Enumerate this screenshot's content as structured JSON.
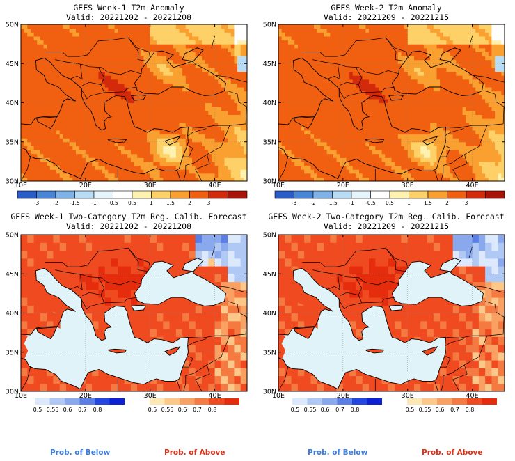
{
  "panels": [
    {
      "title": "GEFS Week-1 T2m Anomaly",
      "valid": "Valid: 20221202 - 20221208",
      "type": "anomaly"
    },
    {
      "title": "GEFS Week-2 T2m Anomaly",
      "valid": "Valid: 20221209 - 20221215",
      "type": "anomaly"
    },
    {
      "title": "GEFS Week-1 Two-Category T2m Reg. Calib. Forecast",
      "valid": "Valid: 20221202 - 20221208",
      "type": "prob"
    },
    {
      "title": "GEFS Week-2 Two-Category T2m Reg. Calib. Forecast",
      "valid": "Valid: 20221209 - 20221215",
      "type": "prob"
    }
  ],
  "map": {
    "lat_labels": [
      "50N",
      "45N",
      "40N",
      "35N",
      "30N"
    ],
    "lon_labels": [
      "10E",
      "20E",
      "30E",
      "40E"
    ]
  },
  "anomaly_colorbar": {
    "labels": [
      "-3",
      "-2",
      "-1.5",
      "-1",
      "-0.5",
      "0.5",
      "1",
      "1.5",
      "2",
      "3"
    ],
    "colors": [
      "#2a5cc8",
      "#4a86d8",
      "#7fb3e8",
      "#b8dcf4",
      "#e6f5fc",
      "#ffffff",
      "#fff2b0",
      "#fdd068",
      "#f9a030",
      "#f06010",
      "#d42a0c",
      "#a81408"
    ]
  },
  "prob_colorbar": {
    "below_labels": [
      "0.5",
      "0.55",
      "0.6",
      "0.7",
      "0.8"
    ],
    "below_colors": [
      "#dce8fb",
      "#b0c8f4",
      "#8aa8ee",
      "#5a7ee6",
      "#2446e0",
      "#0c20d6"
    ],
    "above_labels": [
      "0.5",
      "0.55",
      "0.6",
      "0.7",
      "0.8"
    ],
    "above_colors": [
      "#fde7b4",
      "#fcc88a",
      "#f9a162",
      "#f57a42",
      "#ef4a20",
      "#e52c0c"
    ]
  },
  "footer": {
    "below": "Prob. of Below",
    "above": "Prob. of Above"
  },
  "colors": {
    "below_text": "#3b7de0",
    "above_text": "#e03018",
    "sea_prob": "#dff3f8"
  }
}
